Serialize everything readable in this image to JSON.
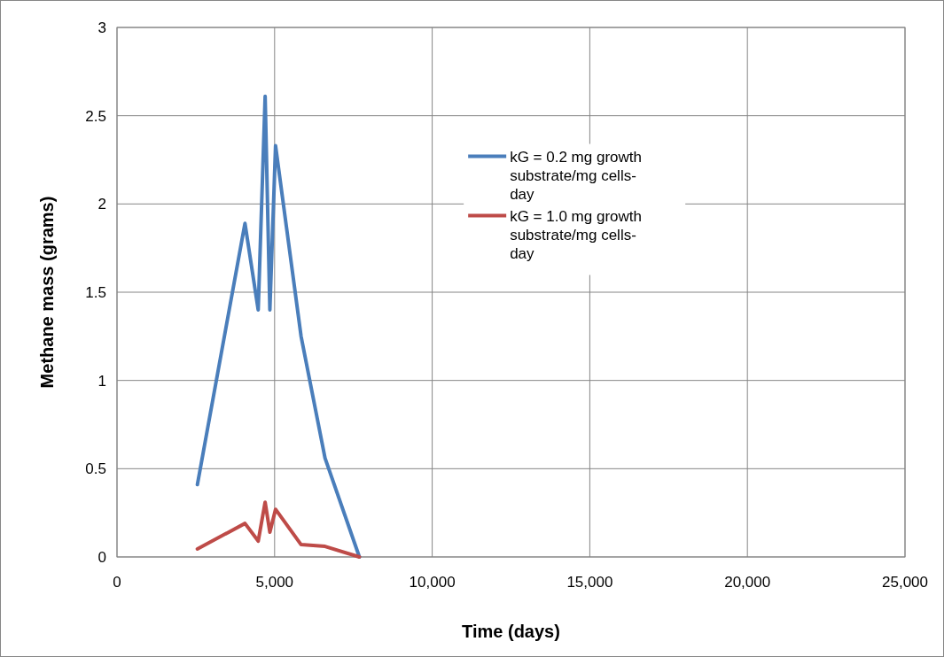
{
  "chart_data": {
    "type": "line",
    "xlabel": "Time (days)",
    "ylabel": "Methane mass (grams)",
    "xlim": [
      0,
      25000
    ],
    "xticks": [
      0,
      {
        "value": 5000,
        "label": "5,000"
      },
      {
        "value": 10000,
        "label": "10,000"
      },
      {
        "value": 15000,
        "label": "15,000"
      },
      {
        "value": 20000,
        "label": "20,000"
      },
      {
        "value": 25000,
        "label": "25,000"
      }
    ],
    "ylim": [
      0,
      3
    ],
    "yticks": [
      0,
      0.5,
      1,
      1.5,
      2,
      2.5,
      3
    ],
    "grid": true,
    "legend": "top",
    "marker": "none",
    "line_style": "solid",
    "series": [
      {
        "name": "kG = 0.2 mg growth substrate/mg cells-day",
        "color": "#4a7ebb",
        "x": [
          2550,
          4060,
          4480,
          4700,
          4850,
          5030,
          5840,
          6600,
          7690
        ],
        "values": [
          0.41,
          1.89,
          1.4,
          2.61,
          1.4,
          2.33,
          1.25,
          0.56,
          0
        ]
      },
      {
        "name": "kG = 1.0 mg growth substrate/mg cells-day",
        "color": "#be4b48",
        "x": [
          2550,
          4060,
          4480,
          4700,
          4850,
          5030,
          5840,
          6600,
          7690
        ],
        "values": [
          0.045,
          0.19,
          0.09,
          0.31,
          0.14,
          0.27,
          0.07,
          0.06,
          0
        ]
      }
    ]
  }
}
